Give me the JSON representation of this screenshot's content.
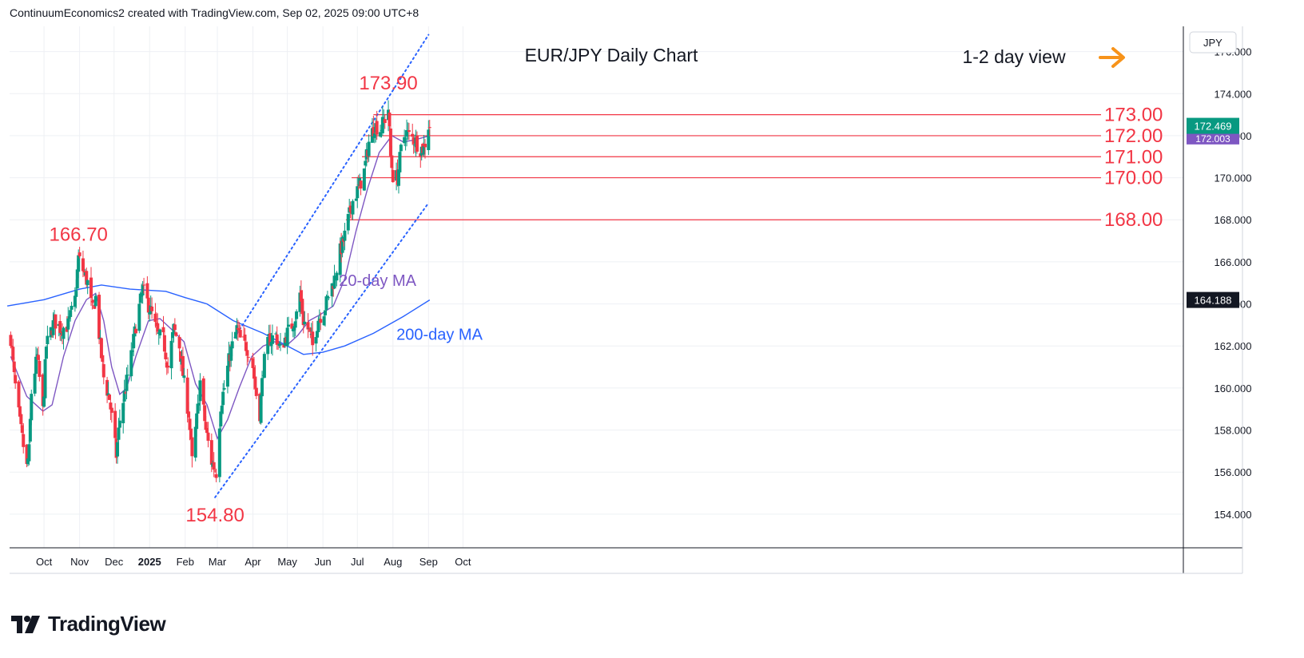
{
  "header": {
    "caption": "ContinuumEconomics2 created with TradingView.com, Sep 02, 2025 09:00 UTC+8"
  },
  "currency": "JPY",
  "branding": {
    "name": "TradingView"
  },
  "colors": {
    "up": "#089981",
    "down": "#f23645",
    "ma20": "#7e57c2",
    "ma200": "#2962ff",
    "annotation": "#f23645",
    "trend": "#2962ff",
    "arrow": "#f7931a",
    "price_label": "#131722",
    "ma200_label": "#2962ff"
  },
  "chart_data": {
    "type": "candlestick",
    "title": "EUR/JPY Daily Chart",
    "view_label": "1-2 day view",
    "last_price": "172.469",
    "ma20_value": "172.003",
    "ma200_value": "164.188",
    "ylim": [
      152.4,
      177.2
    ],
    "y_ticks": [
      "176.000",
      "174.000",
      "172.000",
      "170.000",
      "168.000",
      "166.000",
      "164.000",
      "162.000",
      "160.000",
      "158.000",
      "156.000",
      "154.000"
    ],
    "x_ticks": [
      {
        "label": "Oct",
        "date": "2024-10-01"
      },
      {
        "label": "Nov",
        "date": "2024-11-01"
      },
      {
        "label": "Dec",
        "date": "2024-12-01"
      },
      {
        "label": "2025",
        "date": "2025-01-01"
      },
      {
        "label": "Feb",
        "date": "2025-02-01"
      },
      {
        "label": "Mar",
        "date": "2025-03-01"
      },
      {
        "label": "Apr",
        "date": "2025-04-01"
      },
      {
        "label": "May",
        "date": "2025-05-01"
      },
      {
        "label": "Jun",
        "date": "2025-06-01"
      },
      {
        "label": "Jul",
        "date": "2025-07-01"
      },
      {
        "label": "Aug",
        "date": "2025-08-01"
      },
      {
        "label": "Sep",
        "date": "2025-09-01"
      },
      {
        "label": "Oct",
        "date": "2025-10-01"
      }
    ],
    "close_anchors": [
      [
        "2024-09-02",
        162.4
      ],
      [
        "2024-09-05",
        160.5
      ],
      [
        "2024-09-10",
        158.3
      ],
      [
        "2024-09-16",
        156.2
      ],
      [
        "2024-09-18",
        157.0
      ],
      [
        "2024-09-20",
        159.8
      ],
      [
        "2024-09-25",
        161.5
      ],
      [
        "2024-09-30",
        158.9
      ],
      [
        "2024-10-03",
        162.0
      ],
      [
        "2024-10-10",
        163.2
      ],
      [
        "2024-10-16",
        162.8
      ],
      [
        "2024-10-22",
        163.0
      ],
      [
        "2024-10-28",
        164.2
      ],
      [
        "2024-10-31",
        166.2
      ],
      [
        "2024-11-04",
        165.6
      ],
      [
        "2024-11-08",
        165.0
      ],
      [
        "2024-11-12",
        163.7
      ],
      [
        "2024-11-15",
        164.3
      ],
      [
        "2024-11-19",
        162.0
      ],
      [
        "2024-11-22",
        160.5
      ],
      [
        "2024-11-27",
        159.5
      ],
      [
        "2024-12-03",
        156.8
      ],
      [
        "2024-12-06",
        158.5
      ],
      [
        "2024-12-11",
        160.0
      ],
      [
        "2024-12-16",
        161.5
      ],
      [
        "2024-12-20",
        163.0
      ],
      [
        "2024-12-26",
        164.7
      ],
      [
        "2025-01-03",
        163.5
      ],
      [
        "2025-01-08",
        162.5
      ],
      [
        "2025-01-13",
        162.3
      ],
      [
        "2025-01-17",
        161.0
      ],
      [
        "2025-01-22",
        162.8
      ],
      [
        "2025-01-27",
        162.0
      ],
      [
        "2025-01-31",
        160.2
      ],
      [
        "2025-02-04",
        158.8
      ],
      [
        "2025-02-07",
        156.5
      ],
      [
        "2025-02-12",
        159.0
      ],
      [
        "2025-02-14",
        160.3
      ],
      [
        "2025-02-19",
        158.0
      ],
      [
        "2025-02-24",
        156.5
      ],
      [
        "2025-02-28",
        156.0
      ],
      [
        "2025-03-04",
        159.2
      ],
      [
        "2025-03-07",
        160.0
      ],
      [
        "2025-03-12",
        161.6
      ],
      [
        "2025-03-18",
        162.8
      ],
      [
        "2025-03-21",
        162.3
      ],
      [
        "2025-03-26",
        162.0
      ],
      [
        "2025-03-31",
        161.5
      ],
      [
        "2025-04-03",
        160.0
      ],
      [
        "2025-04-07",
        158.8
      ],
      [
        "2025-04-10",
        161.0
      ],
      [
        "2025-04-15",
        162.3
      ],
      [
        "2025-04-21",
        162.5
      ],
      [
        "2025-04-25",
        161.8
      ],
      [
        "2025-04-30",
        162.5
      ],
      [
        "2025-05-05",
        163.0
      ],
      [
        "2025-05-09",
        163.5
      ],
      [
        "2025-05-12",
        164.5
      ],
      [
        "2025-05-15",
        163.2
      ],
      [
        "2025-05-20",
        162.7
      ],
      [
        "2025-05-23",
        162.0
      ],
      [
        "2025-05-28",
        163.3
      ],
      [
        "2025-06-02",
        163.7
      ],
      [
        "2025-06-06",
        164.4
      ],
      [
        "2025-06-11",
        165.2
      ],
      [
        "2025-06-16",
        166.5
      ],
      [
        "2025-06-19",
        167.0
      ],
      [
        "2025-06-23",
        168.0
      ],
      [
        "2025-06-27",
        168.9
      ],
      [
        "2025-07-02",
        169.5
      ],
      [
        "2025-07-07",
        170.3
      ],
      [
        "2025-07-11",
        171.7
      ],
      [
        "2025-07-16",
        172.5
      ],
      [
        "2025-07-21",
        172.3
      ],
      [
        "2025-07-25",
        172.8
      ],
      [
        "2025-07-28",
        173.3
      ],
      [
        "2025-07-30",
        171.0
      ],
      [
        "2025-08-01",
        170.1
      ],
      [
        "2025-08-05",
        170.0
      ],
      [
        "2025-08-08",
        171.3
      ],
      [
        "2025-08-12",
        172.2
      ],
      [
        "2025-08-15",
        172.0
      ],
      [
        "2025-08-20",
        171.8
      ],
      [
        "2025-08-25",
        171.4
      ],
      [
        "2025-08-28",
        171.4
      ],
      [
        "2025-09-01",
        172.47
      ]
    ],
    "series": [
      {
        "name": "20-day MA",
        "points": [
          [
            "2024-09-02",
            161.5
          ],
          [
            "2024-09-16",
            159.6
          ],
          [
            "2024-09-30",
            158.9
          ],
          [
            "2024-10-08",
            159.2
          ],
          [
            "2024-10-18",
            161.5
          ],
          [
            "2024-10-28",
            163.2
          ],
          [
            "2024-11-07",
            164.2
          ],
          [
            "2024-11-15",
            164.5
          ],
          [
            "2024-11-22",
            163.2
          ],
          [
            "2024-11-29",
            161.0
          ],
          [
            "2024-12-06",
            159.7
          ],
          [
            "2024-12-12",
            160.0
          ],
          [
            "2024-12-20",
            161.5
          ],
          [
            "2024-12-31",
            163.2
          ],
          [
            "2025-01-10",
            163.3
          ],
          [
            "2025-01-20",
            162.8
          ],
          [
            "2025-01-31",
            162.2
          ],
          [
            "2025-02-10",
            160.2
          ],
          [
            "2025-02-20",
            159.2
          ],
          [
            "2025-03-01",
            157.6
          ],
          [
            "2025-03-10",
            158.5
          ],
          [
            "2025-03-20",
            160.0
          ],
          [
            "2025-03-31",
            161.5
          ],
          [
            "2025-04-10",
            162.0
          ],
          [
            "2025-04-20",
            162.2
          ],
          [
            "2025-04-30",
            162.0
          ],
          [
            "2025-05-10",
            162.5
          ],
          [
            "2025-05-20",
            163.2
          ],
          [
            "2025-05-30",
            163.5
          ],
          [
            "2025-06-10",
            163.9
          ],
          [
            "2025-06-20",
            165.2
          ],
          [
            "2025-06-30",
            167.5
          ],
          [
            "2025-07-10",
            169.5
          ],
          [
            "2025-07-20",
            171.2
          ],
          [
            "2025-07-31",
            172.0
          ],
          [
            "2025-08-10",
            171.7
          ],
          [
            "2025-08-20",
            171.8
          ],
          [
            "2025-09-02",
            172.0
          ]
        ]
      },
      {
        "name": "200-day MA",
        "points": [
          [
            "2024-08-30",
            163.9
          ],
          [
            "2024-10-01",
            164.2
          ],
          [
            "2024-11-01",
            164.7
          ],
          [
            "2024-11-20",
            164.9
          ],
          [
            "2024-12-15",
            164.7
          ],
          [
            "2025-01-15",
            164.6
          ],
          [
            "2025-02-01",
            164.3
          ],
          [
            "2025-02-20",
            164.0
          ],
          [
            "2025-03-15",
            163.2
          ],
          [
            "2025-04-10",
            162.6
          ],
          [
            "2025-05-01",
            162.0
          ],
          [
            "2025-05-15",
            161.6
          ],
          [
            "2025-06-01",
            161.7
          ],
          [
            "2025-06-20",
            162.0
          ],
          [
            "2025-07-15",
            162.6
          ],
          [
            "2025-08-10",
            163.4
          ],
          [
            "2025-09-02",
            164.19
          ]
        ]
      }
    ],
    "levels": [
      {
        "label": "173.00",
        "value": 173.0,
        "from": "2025-07-15"
      },
      {
        "label": "172.00",
        "value": 172.0,
        "from": "2025-07-08"
      },
      {
        "label": "171.00",
        "value": 171.0,
        "from": "2025-07-05"
      },
      {
        "label": "170.00",
        "value": 170.0,
        "from": "2025-06-26"
      },
      {
        "label": "168.00",
        "value": 168.0,
        "from": "2025-06-21"
      }
    ],
    "trend_channel": [
      {
        "from": [
          "2025-03-16",
          162.4
        ],
        "to": [
          "2025-09-01",
          176.8
        ]
      },
      {
        "from": [
          "2025-02-27",
          154.8
        ],
        "to": [
          "2025-09-01",
          168.8
        ]
      }
    ],
    "annotations": [
      {
        "text": "166.70",
        "date": "2024-10-31",
        "value": 166.7
      },
      {
        "text": "173.90",
        "date": "2025-07-28",
        "value": 173.9
      },
      {
        "text": "154.80",
        "date": "2025-02-27",
        "value": 154.8
      }
    ],
    "ma_labels": [
      {
        "text": "20-day MA",
        "date": "2025-06-15",
        "value": 164.85
      },
      {
        "text": "200-day MA",
        "date": "2025-08-04",
        "value": 162.3
      }
    ]
  }
}
